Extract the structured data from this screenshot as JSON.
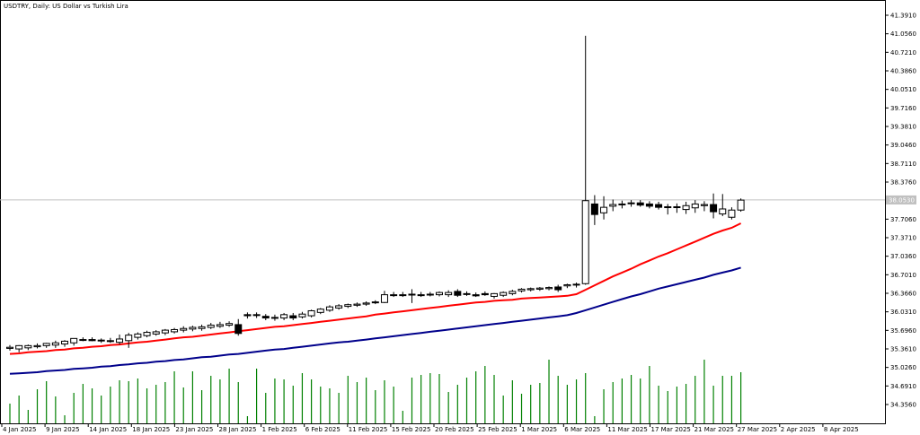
{
  "header": {
    "title": "USDTRY, Daily:  US Dollar vs Turkish Lira"
  },
  "colors": {
    "background": "#ffffff",
    "candle_up_fill": "#ffffff",
    "candle_down_fill": "#000000",
    "candle_outline": "#000000",
    "ma_fast": "#ff0000",
    "ma_slow": "#00008b",
    "volume": "#008000",
    "price_line": "#c0c0c0"
  },
  "chart_data": {
    "type": "candlestick",
    "title": "USDTRY, Daily:  US Dollar vs Turkish Lira",
    "ylim": [
      34.1,
      41.55
    ],
    "y_ticks": [
      "41.3910",
      "41.0560",
      "40.7210",
      "40.3860",
      "40.0510",
      "39.7160",
      "39.3810",
      "39.0460",
      "38.7110",
      "38.3760",
      "38.0410",
      "37.7060",
      "37.3710",
      "37.0360",
      "36.7010",
      "36.3660",
      "36.0310",
      "35.6960",
      "35.3610",
      "35.0260",
      "34.6910",
      "34.3560"
    ],
    "current_price": "38.0530",
    "x_labels": [
      "4 Jan 2025",
      "9 Jan 2025",
      "14 Jan 2025",
      "18 Jan 2025",
      "23 Jan 2025",
      "28 Jan 2025",
      "1 Feb 2025",
      "6 Feb 2025",
      "11 Feb 2025",
      "15 Feb 2025",
      "20 Feb 2025",
      "25 Feb 2025",
      "1 Mar 2025",
      "6 Mar 2025",
      "11 Mar 2025",
      "17 Mar 2025",
      "21 Mar 2025",
      "27 Mar 2025",
      "2 Apr 2025",
      "8 Apr 2025"
    ],
    "candles": [
      {
        "o": 35.37,
        "h": 35.43,
        "l": 35.33,
        "c": 35.39
      },
      {
        "o": 35.36,
        "h": 35.43,
        "l": 35.3,
        "c": 35.42
      },
      {
        "o": 35.38,
        "h": 35.44,
        "l": 35.34,
        "c": 35.42
      },
      {
        "o": 35.4,
        "h": 35.46,
        "l": 35.37,
        "c": 35.42
      },
      {
        "o": 35.42,
        "h": 35.47,
        "l": 35.38,
        "c": 35.46
      },
      {
        "o": 35.43,
        "h": 35.51,
        "l": 35.38,
        "c": 35.47
      },
      {
        "o": 35.45,
        "h": 35.52,
        "l": 35.4,
        "c": 35.5
      },
      {
        "o": 35.47,
        "h": 35.55,
        "l": 35.42,
        "c": 35.55
      },
      {
        "o": 35.53,
        "h": 35.57,
        "l": 35.5,
        "c": 35.53
      },
      {
        "o": 35.53,
        "h": 35.57,
        "l": 35.5,
        "c": 35.51
      },
      {
        "o": 35.51,
        "h": 35.55,
        "l": 35.47,
        "c": 35.52
      },
      {
        "o": 35.51,
        "h": 35.56,
        "l": 35.47,
        "c": 35.5
      },
      {
        "o": 35.48,
        "h": 35.62,
        "l": 35.44,
        "c": 35.54
      },
      {
        "o": 35.51,
        "h": 35.65,
        "l": 35.38,
        "c": 35.61
      },
      {
        "o": 35.57,
        "h": 35.66,
        "l": 35.53,
        "c": 35.63
      },
      {
        "o": 35.6,
        "h": 35.69,
        "l": 35.57,
        "c": 35.66
      },
      {
        "o": 35.63,
        "h": 35.7,
        "l": 35.6,
        "c": 35.67
      },
      {
        "o": 35.65,
        "h": 35.72,
        "l": 35.61,
        "c": 35.7
      },
      {
        "o": 35.67,
        "h": 35.74,
        "l": 35.64,
        "c": 35.71
      },
      {
        "o": 35.7,
        "h": 35.77,
        "l": 35.66,
        "c": 35.73
      },
      {
        "o": 35.72,
        "h": 35.78,
        "l": 35.68,
        "c": 35.75
      },
      {
        "o": 35.73,
        "h": 35.8,
        "l": 35.69,
        "c": 35.76
      },
      {
        "o": 35.75,
        "h": 35.83,
        "l": 35.72,
        "c": 35.79
      },
      {
        "o": 35.77,
        "h": 35.85,
        "l": 35.74,
        "c": 35.8
      },
      {
        "o": 35.79,
        "h": 35.86,
        "l": 35.76,
        "c": 35.82
      },
      {
        "o": 35.8,
        "h": 35.9,
        "l": 35.6,
        "c": 35.64
      },
      {
        "o": 35.98,
        "h": 36.02,
        "l": 35.91,
        "c": 35.96
      },
      {
        "o": 35.97,
        "h": 36.02,
        "l": 35.92,
        "c": 35.98
      },
      {
        "o": 35.95,
        "h": 35.99,
        "l": 35.88,
        "c": 35.92
      },
      {
        "o": 35.92,
        "h": 35.98,
        "l": 35.87,
        "c": 35.93
      },
      {
        "o": 35.92,
        "h": 36.01,
        "l": 35.88,
        "c": 35.98
      },
      {
        "o": 35.96,
        "h": 36.01,
        "l": 35.88,
        "c": 35.92
      },
      {
        "o": 35.94,
        "h": 36.03,
        "l": 35.91,
        "c": 35.99
      },
      {
        "o": 35.96,
        "h": 36.07,
        "l": 35.93,
        "c": 36.05
      },
      {
        "o": 36.02,
        "h": 36.1,
        "l": 35.99,
        "c": 36.08
      },
      {
        "o": 36.06,
        "h": 36.15,
        "l": 36.03,
        "c": 36.12
      },
      {
        "o": 36.1,
        "h": 36.17,
        "l": 36.07,
        "c": 36.14
      },
      {
        "o": 36.13,
        "h": 36.18,
        "l": 36.1,
        "c": 36.16
      },
      {
        "o": 36.15,
        "h": 36.2,
        "l": 36.12,
        "c": 36.17
      },
      {
        "o": 36.17,
        "h": 36.22,
        "l": 36.14,
        "c": 36.19
      },
      {
        "o": 36.2,
        "h": 36.24,
        "l": 36.17,
        "c": 36.21
      },
      {
        "o": 36.2,
        "h": 36.41,
        "l": 36.19,
        "c": 36.34
      },
      {
        "o": 36.34,
        "h": 36.39,
        "l": 36.3,
        "c": 36.34
      },
      {
        "o": 36.34,
        "h": 36.39,
        "l": 36.3,
        "c": 36.33
      },
      {
        "o": 36.34,
        "h": 36.44,
        "l": 36.19,
        "c": 36.35
      },
      {
        "o": 36.34,
        "h": 36.39,
        "l": 36.3,
        "c": 36.34
      },
      {
        "o": 36.35,
        "h": 36.39,
        "l": 36.31,
        "c": 36.35
      },
      {
        "o": 36.34,
        "h": 36.4,
        "l": 36.31,
        "c": 36.38
      },
      {
        "o": 36.34,
        "h": 36.42,
        "l": 36.3,
        "c": 36.38
      },
      {
        "o": 36.4,
        "h": 36.44,
        "l": 36.3,
        "c": 36.33
      },
      {
        "o": 36.36,
        "h": 36.4,
        "l": 36.32,
        "c": 36.35
      },
      {
        "o": 36.34,
        "h": 36.38,
        "l": 36.3,
        "c": 36.32
      },
      {
        "o": 36.36,
        "h": 36.4,
        "l": 36.32,
        "c": 36.34
      },
      {
        "o": 36.31,
        "h": 36.37,
        "l": 36.27,
        "c": 36.36
      },
      {
        "o": 36.33,
        "h": 36.4,
        "l": 36.3,
        "c": 36.38
      },
      {
        "o": 36.36,
        "h": 36.43,
        "l": 36.33,
        "c": 36.4
      },
      {
        "o": 36.41,
        "h": 36.46,
        "l": 36.38,
        "c": 36.44
      },
      {
        "o": 36.43,
        "h": 36.47,
        "l": 36.4,
        "c": 36.45
      },
      {
        "o": 36.44,
        "h": 36.48,
        "l": 36.41,
        "c": 36.46
      },
      {
        "o": 36.45,
        "h": 36.49,
        "l": 36.42,
        "c": 36.47
      },
      {
        "o": 36.48,
        "h": 36.52,
        "l": 36.39,
        "c": 36.43
      },
      {
        "o": 36.5,
        "h": 36.54,
        "l": 36.46,
        "c": 36.52
      },
      {
        "o": 36.52,
        "h": 36.56,
        "l": 36.47,
        "c": 36.53
      },
      {
        "o": 36.54,
        "h": 41.02,
        "l": 36.52,
        "c": 38.04
      },
      {
        "o": 37.98,
        "h": 38.14,
        "l": 37.6,
        "c": 37.79
      },
      {
        "o": 37.82,
        "h": 38.12,
        "l": 37.7,
        "c": 37.92
      },
      {
        "o": 37.94,
        "h": 38.06,
        "l": 37.85,
        "c": 37.97
      },
      {
        "o": 37.97,
        "h": 38.04,
        "l": 37.9,
        "c": 37.98
      },
      {
        "o": 37.99,
        "h": 38.05,
        "l": 37.93,
        "c": 38.0
      },
      {
        "o": 38.0,
        "h": 38.05,
        "l": 37.93,
        "c": 37.96
      },
      {
        "o": 37.98,
        "h": 38.03,
        "l": 37.9,
        "c": 37.94
      },
      {
        "o": 37.97,
        "h": 38.02,
        "l": 37.88,
        "c": 37.92
      },
      {
        "o": 37.93,
        "h": 37.98,
        "l": 37.79,
        "c": 37.93
      },
      {
        "o": 37.92,
        "h": 37.99,
        "l": 37.82,
        "c": 37.93
      },
      {
        "o": 37.88,
        "h": 38.02,
        "l": 37.8,
        "c": 37.95
      },
      {
        "o": 37.91,
        "h": 38.05,
        "l": 37.82,
        "c": 37.98
      },
      {
        "o": 37.95,
        "h": 38.03,
        "l": 37.85,
        "c": 37.97
      },
      {
        "o": 37.97,
        "h": 38.17,
        "l": 37.72,
        "c": 37.84
      },
      {
        "o": 37.8,
        "h": 38.16,
        "l": 37.76,
        "c": 37.89
      },
      {
        "o": 37.74,
        "h": 37.92,
        "l": 37.7,
        "c": 37.87
      },
      {
        "o": 37.87,
        "h": 38.08,
        "l": 37.84,
        "c": 38.05
      }
    ],
    "series": [
      {
        "values": [
          35.27,
          35.28,
          35.3,
          35.31,
          35.32,
          35.34,
          35.35,
          35.37,
          35.38,
          35.4,
          35.41,
          35.43,
          35.44,
          35.46,
          35.48,
          35.49,
          35.51,
          35.53,
          35.55,
          35.57,
          35.58,
          35.6,
          35.62,
          35.64,
          35.66,
          35.68,
          35.7,
          35.72,
          35.74,
          35.76,
          35.77,
          35.79,
          35.81,
          35.83,
          35.85,
          35.87,
          35.89,
          35.91,
          35.93,
          35.95,
          35.98,
          36.0,
          36.02,
          36.04,
          36.06,
          36.08,
          36.1,
          36.12,
          36.14,
          36.16,
          36.18,
          36.2,
          36.21,
          36.23,
          36.24,
          36.25,
          36.27,
          36.28,
          36.29,
          36.3,
          36.31,
          36.32,
          36.35,
          36.43,
          36.51,
          36.59,
          36.67,
          36.74,
          36.81,
          36.89,
          36.96,
          37.03,
          37.09,
          37.16,
          37.23,
          37.3,
          37.37,
          37.44,
          37.5,
          37.55,
          37.63
        ]
      },
      {
        "values": [
          34.91,
          34.92,
          34.93,
          34.94,
          34.96,
          34.97,
          34.98,
          35.0,
          35.01,
          35.02,
          35.04,
          35.05,
          35.07,
          35.08,
          35.1,
          35.11,
          35.13,
          35.14,
          35.16,
          35.17,
          35.19,
          35.21,
          35.22,
          35.24,
          35.26,
          35.27,
          35.29,
          35.31,
          35.33,
          35.35,
          35.36,
          35.38,
          35.4,
          35.42,
          35.44,
          35.46,
          35.48,
          35.49,
          35.51,
          35.53,
          35.55,
          35.57,
          35.59,
          35.61,
          35.63,
          35.65,
          35.67,
          35.69,
          35.71,
          35.73,
          35.75,
          35.77,
          35.79,
          35.81,
          35.83,
          35.85,
          35.87,
          35.89,
          35.91,
          35.93,
          35.95,
          35.97,
          36.01,
          36.06,
          36.11,
          36.16,
          36.21,
          36.26,
          36.31,
          36.35,
          36.4,
          36.45,
          36.49,
          36.53,
          36.57,
          36.61,
          36.65,
          36.7,
          36.74,
          36.78,
          36.83
        ]
      }
    ],
    "volume": [
      22,
      31,
      15,
      38,
      47,
      30,
      9,
      34,
      44,
      39,
      31,
      41,
      48,
      47,
      50,
      39,
      43,
      46,
      58,
      40,
      58,
      37,
      53,
      49,
      61,
      46,
      8,
      61,
      34,
      50,
      49,
      42,
      56,
      49,
      41,
      39,
      34,
      53,
      46,
      51,
      37,
      48,
      41,
      14,
      51,
      54,
      56,
      55,
      35,
      43,
      51,
      58,
      64,
      54,
      31,
      48,
      33,
      43,
      45,
      71,
      53,
      43,
      49,
      56,
      8,
      38,
      46,
      50,
      54,
      50,
      64,
      42,
      36,
      41,
      44,
      53,
      71,
      42,
      53,
      53,
      57
    ]
  }
}
